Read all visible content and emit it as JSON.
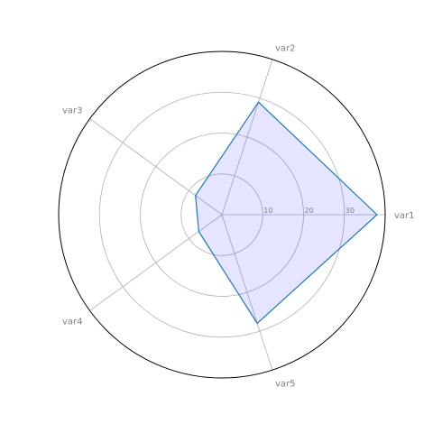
{
  "chart_data": {
    "type": "radar",
    "categories": [
      "var1",
      "var2",
      "var3",
      "var4",
      "var5"
    ],
    "series": [
      {
        "values": [
          38,
          29,
          8,
          7,
          28
        ]
      }
    ],
    "rlim": [
      0,
      40
    ],
    "r_ticks": [
      10,
      20,
      30
    ],
    "r_tick_labels": [
      "10",
      "20",
      "30"
    ],
    "grid": true,
    "colors": {
      "line": "#1f77b4",
      "fill": "#0000ff",
      "fill_opacity": 0.1,
      "grid": "#b0b0b0",
      "outer_ring": "#000000",
      "text": "#7f7f7f"
    }
  }
}
